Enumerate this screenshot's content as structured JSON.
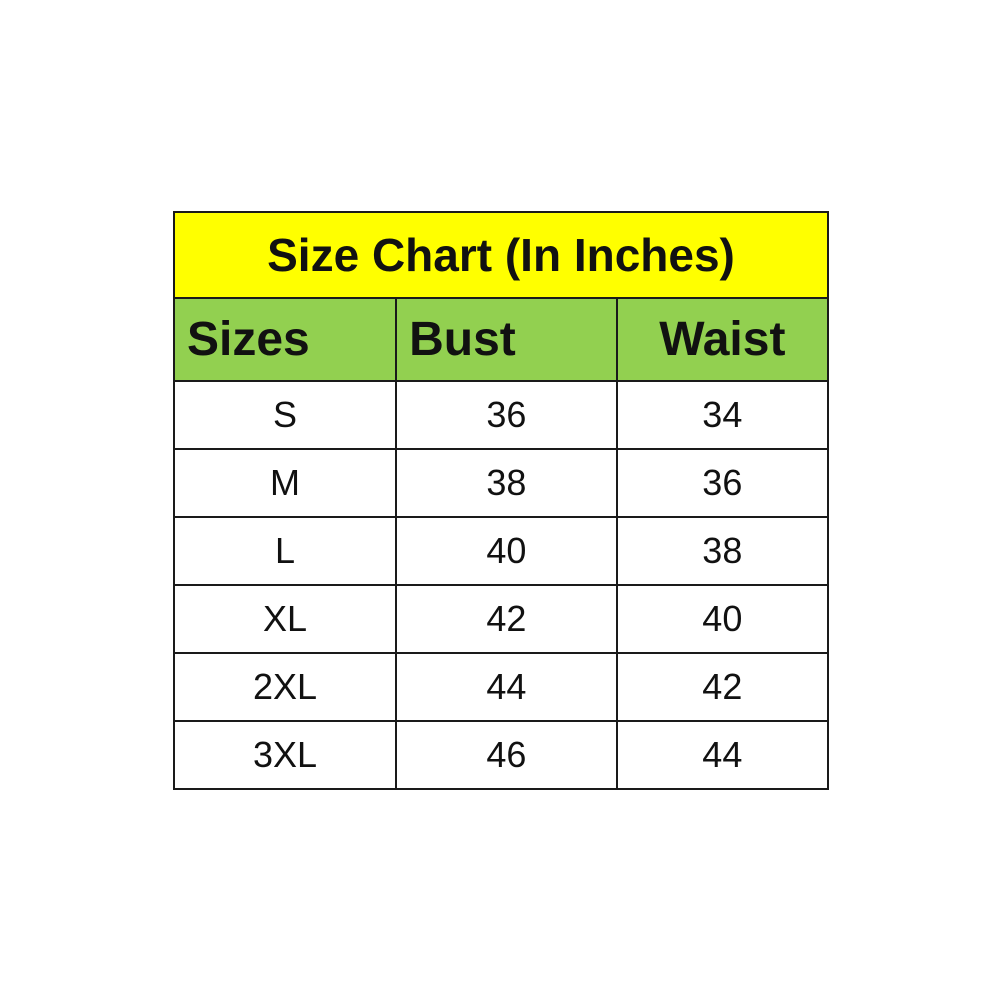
{
  "title": "Size Chart (In Inches)",
  "colors": {
    "title_bg": "#ffff00",
    "header_bg": "#92d050"
  },
  "headers": [
    "Sizes",
    "Bust",
    "Waist"
  ],
  "rows": [
    [
      "S",
      "36",
      "34"
    ],
    [
      "M",
      "38",
      "36"
    ],
    [
      "L",
      "40",
      "38"
    ],
    [
      "XL",
      "42",
      "40"
    ],
    [
      "2XL",
      "44",
      "42"
    ],
    [
      "3XL",
      "46",
      "44"
    ]
  ]
}
